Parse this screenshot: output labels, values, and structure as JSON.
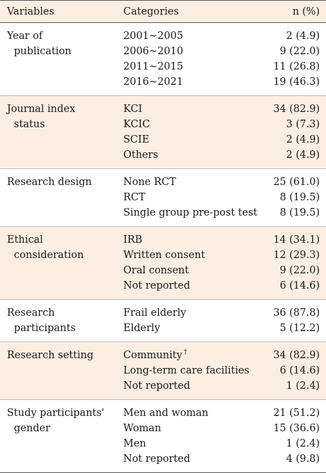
{
  "header": {
    "col1": "Variables",
    "col2": "Categories",
    "col3": "n (%)"
  },
  "groups": [
    {
      "variable": [
        "Year of",
        "publication"
      ],
      "shaded": false,
      "rows": [
        {
          "category": "2001~2005",
          "n": "2 (4.9)"
        },
        {
          "category": "2006~2010",
          "n": "9 (22.0)"
        },
        {
          "category": "2011~2015",
          "n": "11 (26.8)"
        },
        {
          "category": "2016~2021",
          "n": "19 (46.3)"
        }
      ]
    },
    {
      "variable": [
        "Journal index",
        "status"
      ],
      "shaded": true,
      "rows": [
        {
          "category": "KCI",
          "n": "34 (82.9)"
        },
        {
          "category": "KCIC",
          "n": "3 (7.3)"
        },
        {
          "category": "SCIE",
          "n": "2 (4.9)"
        },
        {
          "category": "Others",
          "n": "2 (4.9)"
        }
      ]
    },
    {
      "variable": [
        "Research design"
      ],
      "shaded": false,
      "rows": [
        {
          "category": "None RCT",
          "n": "25 (61.0)"
        },
        {
          "category": "RCT",
          "n": "8 (19.5)"
        },
        {
          "category": "Single group pre-post test",
          "n": "8 (19.5)"
        }
      ]
    },
    {
      "variable": [
        "Ethical",
        "consideration"
      ],
      "shaded": true,
      "rows": [
        {
          "category": "IRB",
          "n": "14 (34.1)"
        },
        {
          "category": "Written consent",
          "n": "12 (29.3)"
        },
        {
          "category": "Oral consent",
          "n": "9 (22.0)"
        },
        {
          "category": "Not reported",
          "n": "6 (14.6)"
        }
      ]
    },
    {
      "variable": [
        "Research",
        "participants"
      ],
      "shaded": false,
      "rows": [
        {
          "category": "Frail elderly",
          "n": "36 (87.8)"
        },
        {
          "category": "Elderly",
          "n": "5 (12.2)"
        }
      ]
    },
    {
      "variable": [
        "Research setting"
      ],
      "shaded": true,
      "rows": [
        {
          "category": "Community",
          "mark": "†",
          "n": "34 (82.9)"
        },
        {
          "category": "Long-term care facilities",
          "n": "6 (14.6)"
        },
        {
          "category": "Not reported",
          "n": "1 (2.4)"
        }
      ]
    },
    {
      "variable": [
        "Study participants'",
        "gender"
      ],
      "shaded": false,
      "rows": [
        {
          "category": "Men and woman",
          "n": "21 (51.2)"
        },
        {
          "category": "Woman",
          "n": "15 (36.6)"
        },
        {
          "category": "Men",
          "n": "1 (2.4)"
        },
        {
          "category": "Not reported",
          "n": "4 (9.8)"
        }
      ]
    }
  ]
}
